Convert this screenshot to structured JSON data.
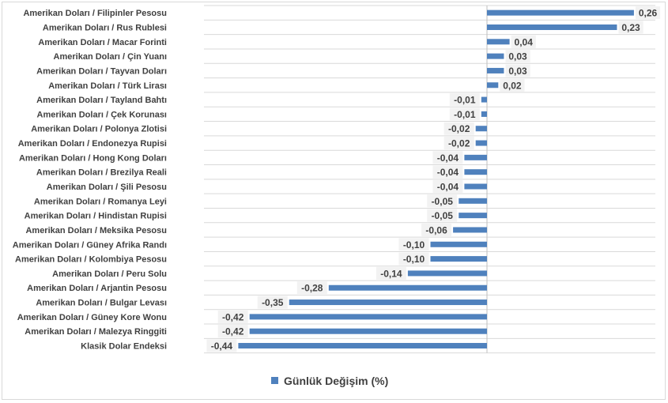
{
  "chart_data": {
    "type": "bar",
    "orientation": "horizontal",
    "categories": [
      "Amerikan Doları / Filipinler Pesosu",
      "Amerikan Doları / Rus Rublesi",
      "Amerikan Doları / Macar Forinti",
      "Amerikan Doları / Çin Yuanı",
      "Amerikan Doları /  Tayvan Doları",
      "Amerikan Doları / Türk Lirası",
      "Amerikan Doları / Tayland Bahtı",
      "Amerikan Doları / Çek Korunası",
      "Amerikan Doları / Polonya Zlotisi",
      "Amerikan Doları / Endonezya Rupisi",
      "Amerikan Doları / Hong Kong Doları",
      "Amerikan Doları / Brezilya Reali",
      "Amerikan Doları / Şili Pesosu",
      "Amerikan Doları / Romanya Leyi",
      "Amerikan Doları / Hindistan Rupisi",
      "Amerikan Doları / Meksika Pesosu",
      "Amerikan Doları / Güney Afrika Randı",
      "Amerikan Doları / Kolombiya Pesosu",
      "Amerikan Doları / Peru Solu",
      "Amerikan Doları / Arjantin Pesosu",
      "Amerikan Doları / Bulgar Levası",
      "Amerikan Doları / Güney Kore Wonu",
      "Amerikan Doları / Malezya Ringgiti",
      "Klasik Dolar Endeksi"
    ],
    "series": [
      {
        "name": "Günlük Değişim (%)",
        "color": "#4f81bd",
        "values": [
          0.26,
          0.23,
          0.04,
          0.03,
          0.03,
          0.02,
          -0.01,
          -0.01,
          -0.02,
          -0.02,
          -0.04,
          -0.04,
          -0.04,
          -0.05,
          -0.05,
          -0.06,
          -0.1,
          -0.1,
          -0.14,
          -0.28,
          -0.35,
          -0.42,
          -0.42,
          -0.44
        ],
        "labels": [
          "0,26",
          "0,23",
          "0,04",
          "0,03",
          "0,03",
          "0,02",
          "-0,01",
          "-0,01",
          "-0,02",
          "-0,02",
          "-0,04",
          "-0,04",
          "-0,04",
          "-0,05",
          "-0,05",
          "-0,06",
          "-0,10",
          "-0,10",
          "-0,14",
          "-0,28",
          "-0,35",
          "-0,42",
          "-0,42",
          "-0,44"
        ]
      }
    ],
    "xlim": [
      -0.44,
      0.3
    ],
    "grid": true,
    "legend_position": "bottom",
    "title": "",
    "xlabel": "",
    "ylabel": ""
  },
  "colors": {
    "bar": "#4f81bd",
    "gridline": "#d9d9d9",
    "axis": "#bfbfbf",
    "text": "#404040",
    "label_bg": "#f2f2f2"
  }
}
